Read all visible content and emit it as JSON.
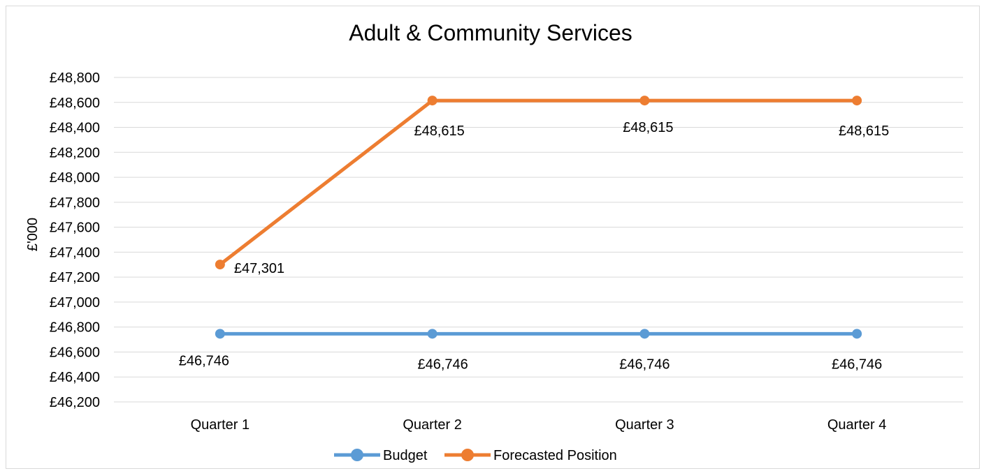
{
  "chart_data": {
    "type": "line",
    "title": "Adult & Community Services",
    "ylabel": "£'000",
    "xlabel": "",
    "categories": [
      "Quarter 1",
      "Quarter 2",
      "Quarter 3",
      "Quarter 4"
    ],
    "ylim": [
      46200,
      48800
    ],
    "ytick_step": 200,
    "ytick_labels": [
      "£46,200",
      "£46,400",
      "£46,600",
      "£46,800",
      "£47,000",
      "£47,200",
      "£47,400",
      "£47,600",
      "£47,800",
      "£48,000",
      "£48,200",
      "£48,400",
      "£48,600",
      "£48,800"
    ],
    "grid": true,
    "legend_position": "bottom",
    "series": [
      {
        "name": "Budget",
        "color": "#5b9bd5",
        "values": [
          46746,
          46746,
          46746,
          46746
        ],
        "labels": [
          "£46,746",
          "£46,746",
          "£46,746",
          "£46,746"
        ]
      },
      {
        "name": "Forecasted Position",
        "color": "#ed7d31",
        "values": [
          47301,
          48615,
          48615,
          48615
        ],
        "labels": [
          "£47,301",
          "£48,615",
          "£48,615",
          "£48,615"
        ]
      }
    ]
  }
}
